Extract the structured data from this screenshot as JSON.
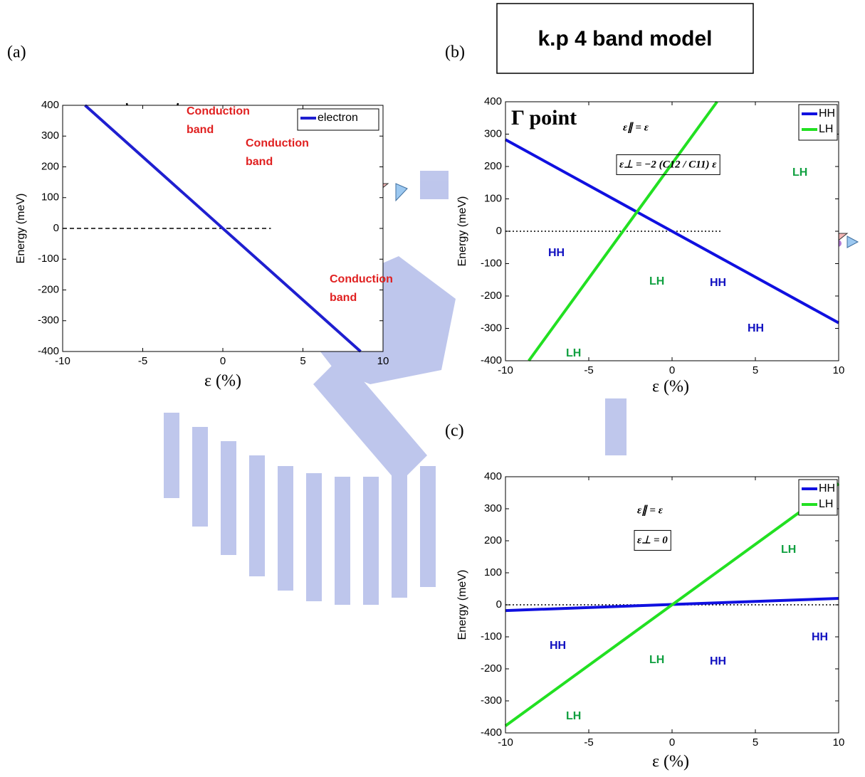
{
  "header": {
    "title": "k.p 4 band model"
  },
  "chart_data": [
    {
      "type": "line",
      "panel": "(a)",
      "xlabel": "ε (%)",
      "ylabel": "Energy (meV)",
      "xlim": [
        -10,
        10
      ],
      "ylim": [
        -400,
        400
      ],
      "xticks": [
        -10,
        -5,
        0,
        5,
        10
      ],
      "yticks": [
        -400,
        -300,
        -200,
        -100,
        0,
        100,
        200,
        300,
        400
      ],
      "legend": "upper right",
      "series": [
        {
          "name": "electron",
          "color": "#1f1fd0",
          "x": [
            -8.6,
            8.6
          ],
          "values": [
            400,
            -400
          ]
        }
      ],
      "hlines": [
        {
          "y": 0,
          "x": [
            -10,
            3
          ],
          "style": "dashed"
        }
      ],
      "annotations": [
        {
          "text": "Conduction",
          "color": "#e02020"
        },
        {
          "text": "band",
          "color": "#e02020"
        },
        {
          "text": "Conduction",
          "color": "#e02020"
        },
        {
          "text": "band",
          "color": "#e02020"
        },
        {
          "text": "Conduction",
          "color": "#e02020"
        },
        {
          "text": "band",
          "color": "#e02020"
        }
      ]
    },
    {
      "type": "line",
      "panel": "(b)",
      "xlabel": "ε (%)",
      "ylabel": "Energy (meV)",
      "xlim": [
        -10,
        10
      ],
      "ylim": [
        -400,
        400
      ],
      "xticks": [
        -10,
        -5,
        0,
        5,
        10
      ],
      "yticks": [
        -400,
        -300,
        -200,
        -100,
        0,
        100,
        200,
        300,
        400
      ],
      "legend": "upper right",
      "series": [
        {
          "name": "HH",
          "color": "#1010e0",
          "x": [
            -10,
            10
          ],
          "values": [
            283,
            -283
          ]
        },
        {
          "name": "LH",
          "color": "#22e022",
          "x": [
            -8.6,
            2.7
          ],
          "values": [
            -400,
            400
          ]
        }
      ],
      "hlines": [
        {
          "y": 0,
          "x": [
            -10,
            3
          ],
          "style": "dotted"
        }
      ],
      "annotations": [
        {
          "text": "Γ  point",
          "color": "#000000"
        },
        {
          "text": "HH",
          "color": "#1010c0"
        },
        {
          "text": "HH",
          "color": "#1010c0"
        },
        {
          "text": "HH",
          "color": "#1010c0"
        },
        {
          "text": "LH",
          "color": "#10a040"
        },
        {
          "text": "LH",
          "color": "#10a040"
        },
        {
          "text": "LH",
          "color": "#10a040"
        },
        {
          "text": "ε∥ = ε",
          "color": "#000000"
        },
        {
          "text": "ε⊥ = −2 (C12 / C11) ε",
          "color": "#000000"
        }
      ]
    },
    {
      "type": "line",
      "panel": "(c)",
      "xlabel": "ε (%)",
      "ylabel": "Energy (meV)",
      "xlim": [
        -10,
        10
      ],
      "ylim": [
        -400,
        400
      ],
      "xticks": [
        -10,
        -5,
        0,
        5,
        10
      ],
      "yticks": [
        -400,
        -300,
        -200,
        -100,
        0,
        100,
        200,
        300,
        400
      ],
      "legend": "upper right",
      "series": [
        {
          "name": "HH",
          "color": "#1010e0",
          "x": [
            -10,
            10
          ],
          "values": [
            -18,
            20
          ]
        },
        {
          "name": "LH",
          "color": "#22e022",
          "x": [
            -10,
            10
          ],
          "values": [
            -378,
            378
          ]
        }
      ],
      "hlines": [
        {
          "y": 0,
          "x": [
            -10,
            10
          ],
          "style": "dotted"
        }
      ],
      "annotations": [
        {
          "text": "HH",
          "color": "#1010c0"
        },
        {
          "text": "HH",
          "color": "#1010c0"
        },
        {
          "text": "HH",
          "color": "#1010c0"
        },
        {
          "text": "LH",
          "color": "#10a040"
        },
        {
          "text": "LH",
          "color": "#10a040"
        },
        {
          "text": "LH",
          "color": "#10a040"
        },
        {
          "text": "ε∥ = ε",
          "color": "#000000"
        },
        {
          "text": "ε⊥ = 0",
          "color": "#000000"
        }
      ]
    }
  ]
}
